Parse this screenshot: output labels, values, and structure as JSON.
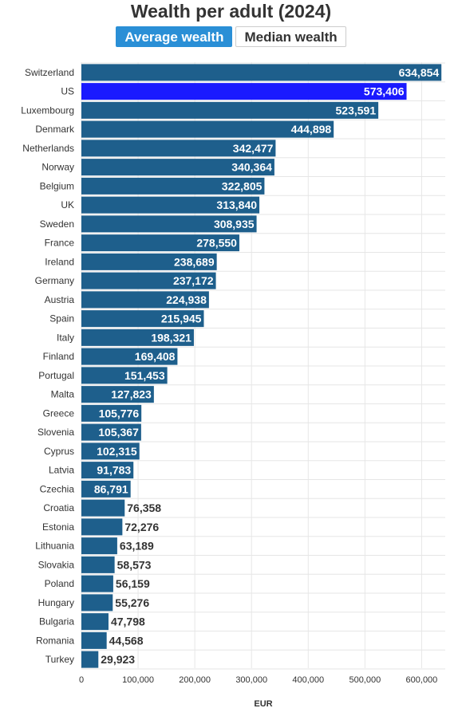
{
  "header": {
    "title": "Wealth per adult (2024)",
    "toggles": [
      {
        "label": "Average wealth",
        "active": true
      },
      {
        "label": "Median wealth",
        "active": false
      }
    ]
  },
  "colors": {
    "bar": "#1e5f8c",
    "highlight": "#1a1aff",
    "gridline": "#e6e6e6",
    "label_inside": "#ffffff",
    "label_outside": "#333333"
  },
  "chart_data": {
    "type": "bar",
    "orientation": "horizontal",
    "title": "Wealth per adult (2024)",
    "xlabel": "EUR",
    "ylabel": "",
    "xlim": [
      0,
      635000
    ],
    "x_ticks": [
      0,
      100000,
      200000,
      300000,
      400000,
      500000,
      600000
    ],
    "x_tick_labels": [
      "0",
      "100,000",
      "200,000",
      "300,000",
      "400,000",
      "500,000",
      "600,000"
    ],
    "grid": true,
    "highlight_category": "US",
    "categories": [
      "Switzerland",
      "US",
      "Luxembourg",
      "Denmark",
      "Netherlands",
      "Norway",
      "Belgium",
      "UK",
      "Sweden",
      "France",
      "Ireland",
      "Germany",
      "Austria",
      "Spain",
      "Italy",
      "Finland",
      "Portugal",
      "Malta",
      "Greece",
      "Slovenia",
      "Cyprus",
      "Latvia",
      "Czechia",
      "Croatia",
      "Estonia",
      "Lithuania",
      "Slovakia",
      "Poland",
      "Hungary",
      "Bulgaria",
      "Romania",
      "Turkey"
    ],
    "values": [
      634854,
      573406,
      523591,
      444898,
      342477,
      340364,
      322805,
      313840,
      308935,
      278550,
      238689,
      237172,
      224938,
      215945,
      198321,
      169408,
      151453,
      127823,
      105776,
      105367,
      102315,
      91783,
      86791,
      76358,
      72276,
      63189,
      58573,
      56159,
      55276,
      47798,
      44568,
      29923
    ],
    "value_labels": [
      "634,854",
      "573,406",
      "523,591",
      "444,898",
      "342,477",
      "340,364",
      "322,805",
      "313,840",
      "308,935",
      "278,550",
      "238,689",
      "237,172",
      "224,938",
      "215,945",
      "198,321",
      "169,408",
      "151,453",
      "127,823",
      "105,776",
      "105,367",
      "102,315",
      "91,783",
      "86,791",
      "76,358",
      "72,276",
      "63,189",
      "58,573",
      "56,159",
      "55,276",
      "47,798",
      "44,568",
      "29,923"
    ]
  }
}
